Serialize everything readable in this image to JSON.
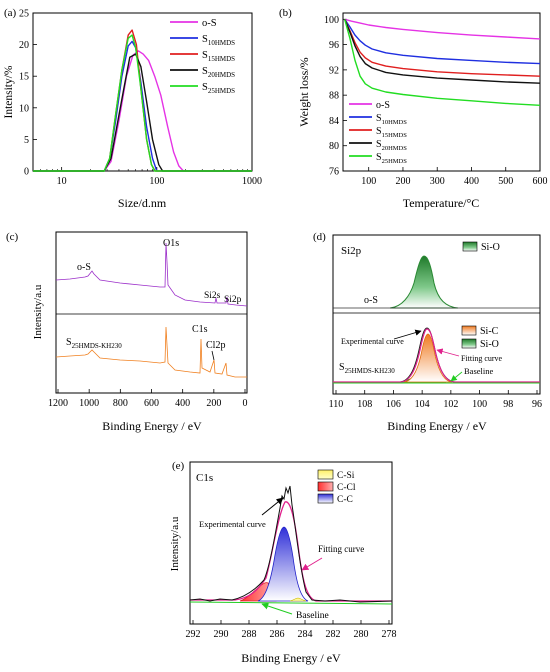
{
  "chart_data": [
    {
      "panel": "(a)",
      "type": "line",
      "xlabel": "Size/d.nm",
      "ylabel": "Intensity/%",
      "xscale": "log",
      "xlim": [
        5,
        1000
      ],
      "ylim": [
        0,
        25
      ],
      "xticks": [
        "10",
        "100",
        "1000"
      ],
      "yticks": [
        "0",
        "5",
        "10",
        "15",
        "20",
        "25"
      ],
      "legend_position": "top-right",
      "series": [
        {
          "name": "o-S",
          "sub": "",
          "color": "#e533e5",
          "x": [
            5,
            28,
            33,
            40,
            48,
            56,
            64,
            72,
            82,
            95,
            110,
            130,
            150,
            170,
            190,
            1000
          ],
          "y": [
            0,
            0,
            1.5,
            8,
            15,
            18.3,
            19,
            18.5,
            17.5,
            15,
            12,
            7,
            3,
            0.8,
            0,
            0
          ]
        },
        {
          "name": "S",
          "sub": "10HMDS",
          "color": "#1f2fe0",
          "x": [
            5,
            28,
            32,
            37,
            43,
            50,
            55,
            60,
            68,
            78,
            90,
            100,
            1000
          ],
          "y": [
            0,
            0,
            2,
            8,
            15,
            19.8,
            20.5,
            19.5,
            14,
            7,
            2,
            0,
            0
          ]
        },
        {
          "name": "S",
          "sub": "15HMDS",
          "color": "#e01f1f",
          "x": [
            5,
            28,
            32,
            37,
            43,
            50,
            55,
            61,
            68,
            78,
            88,
            96,
            1000
          ],
          "y": [
            0,
            0,
            2,
            9,
            16,
            21.5,
            22.3,
            20,
            13,
            5,
            1,
            0,
            0
          ]
        },
        {
          "name": "S",
          "sub": "20HMDS",
          "color": "#111111",
          "x": [
            5,
            28,
            33,
            38,
            45,
            52,
            60,
            68,
            78,
            90,
            105,
            115,
            1000
          ],
          "y": [
            0,
            0,
            2,
            7,
            13,
            18,
            18.5,
            16.5,
            11,
            5,
            1,
            0,
            0
          ]
        },
        {
          "name": "S",
          "sub": "25HMDS",
          "color": "#22dd22",
          "x": [
            5,
            28,
            32,
            37,
            43,
            50,
            55,
            60,
            68,
            78,
            88,
            95,
            1000
          ],
          "y": [
            0,
            0,
            2,
            9,
            16,
            21,
            21.5,
            19.5,
            13,
            5,
            1,
            0,
            0
          ]
        }
      ]
    },
    {
      "panel": "(b)",
      "type": "line",
      "xlabel": "Temperature/°C",
      "ylabel": "Weight loss/%",
      "xlim": [
        25,
        600
      ],
      "ylim": [
        76,
        101
      ],
      "xticks": [
        "100",
        "200",
        "300",
        "400",
        "500",
        "600"
      ],
      "yticks": [
        "76",
        "80",
        "84",
        "88",
        "92",
        "96",
        "100"
      ],
      "legend_position": "bottom-left",
      "series": [
        {
          "name": "o-S",
          "sub": "",
          "color": "#e533e5",
          "x": [
            30,
            50,
            75,
            100,
            150,
            200,
            300,
            400,
            500,
            600
          ],
          "y": [
            100,
            99.7,
            99.4,
            99.1,
            98.7,
            98.4,
            97.9,
            97.5,
            97.2,
            96.9
          ]
        },
        {
          "name": "S",
          "sub": "10HMDS",
          "color": "#1f2fe0",
          "x": [
            30,
            45,
            60,
            75,
            90,
            110,
            150,
            200,
            300,
            400,
            500,
            600
          ],
          "y": [
            100,
            98.8,
            97.5,
            96.6,
            95.9,
            95.3,
            94.7,
            94.3,
            93.8,
            93.5,
            93.2,
            93
          ]
        },
        {
          "name": "S",
          "sub": "15HMDS",
          "color": "#e01f1f",
          "x": [
            30,
            45,
            60,
            75,
            90,
            110,
            150,
            200,
            300,
            400,
            500,
            600
          ],
          "y": [
            100,
            98.2,
            96.3,
            94.8,
            93.9,
            93.2,
            92.6,
            92.2,
            91.7,
            91.4,
            91.2,
            91
          ]
        },
        {
          "name": "S",
          "sub": "20HMDS",
          "color": "#111111",
          "x": [
            30,
            45,
            60,
            75,
            90,
            110,
            150,
            200,
            300,
            400,
            500,
            600
          ],
          "y": [
            100,
            98,
            95.8,
            94.1,
            93,
            92.3,
            91.6,
            91.2,
            90.7,
            90.4,
            90.1,
            89.9
          ]
        },
        {
          "name": "S",
          "sub": "25HMDS",
          "color": "#22dd22",
          "x": [
            30,
            45,
            60,
            75,
            90,
            110,
            150,
            200,
            300,
            400,
            500,
            600
          ],
          "y": [
            100,
            97,
            93.5,
            91,
            89.8,
            89.1,
            88.5,
            88.1,
            87.5,
            87.1,
            86.7,
            86.4
          ]
        }
      ]
    },
    {
      "panel": "(c)",
      "type": "line",
      "xlabel": "Binding Energy / eV",
      "ylabel": "Intensity/a.u",
      "xlim": [
        1200,
        0
      ],
      "xticks": [
        "1200",
        "1000",
        "800",
        "600",
        "400",
        "200",
        "0"
      ],
      "sample_labels": [
        {
          "name": "o-S",
          "sub": ""
        },
        {
          "name": "S",
          "sub": "25HMDS-KH230"
        }
      ],
      "peak_labels": [
        "O1s",
        "Si2s",
        "Si2p",
        "C1s",
        "Cl2p"
      ]
    },
    {
      "panel": "(d)",
      "type": "area",
      "xlabel": "Binding Energy / eV",
      "xlim": [
        110,
        96
      ],
      "xticks": [
        "110",
        "108",
        "106",
        "104",
        "102",
        "100",
        "98",
        "96"
      ],
      "title": "Si2p",
      "sample_labels": [
        {
          "name": "o-S",
          "sub": ""
        },
        {
          "name": "S",
          "sub": "25HMDS-KH230"
        }
      ],
      "legend_top": [
        "Si-O"
      ],
      "legend_bottom": [
        "Si-C",
        "Si-O"
      ],
      "annotations": [
        "Experimental curve",
        "Fitting curve",
        "Baseline"
      ]
    },
    {
      "panel": "(e)",
      "type": "area",
      "xlabel": "Binding Energy / eV",
      "ylabel": "Intensity/a.u",
      "xlim": [
        292,
        278
      ],
      "xticks": [
        "292",
        "290",
        "288",
        "286",
        "284",
        "282",
        "280",
        "278"
      ],
      "title": "C1s",
      "legend": [
        "C-Si",
        "C-Cl",
        "C-C"
      ],
      "annotations": [
        "Experimental curve",
        "Fitting curve",
        "Baseline"
      ]
    }
  ]
}
